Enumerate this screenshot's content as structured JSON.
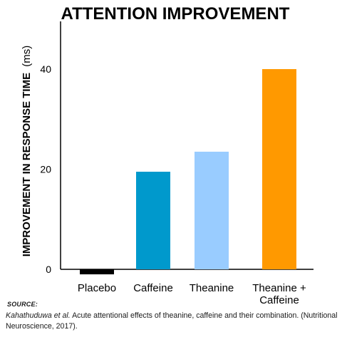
{
  "chart_data": {
    "type": "bar",
    "title": "ATTENTION IMPROVEMENT",
    "xlabel": "",
    "ylabel": "IMPROVEMENT IN RESPONSE TIME",
    "ylabel_unit": "(ms)",
    "categories": [
      "Placebo",
      "Caffeine",
      "Theanine",
      "Theanine +\nCaffeine"
    ],
    "values": [
      -1,
      19.5,
      23.5,
      40
    ],
    "colors": [
      "#000000",
      "#0099cc",
      "#99ccff",
      "#ff9900"
    ],
    "yticks": [
      0,
      20,
      40
    ],
    "ylim": [
      -2,
      50
    ],
    "grid": false,
    "legend": "none"
  },
  "source": {
    "label": "SOURCE:",
    "authors": "Kahathuduwa et al.",
    "text": "Acute attentional effects of theanine, caffeine and their combination. (Nutritional Neuroscience, 2017)."
  }
}
